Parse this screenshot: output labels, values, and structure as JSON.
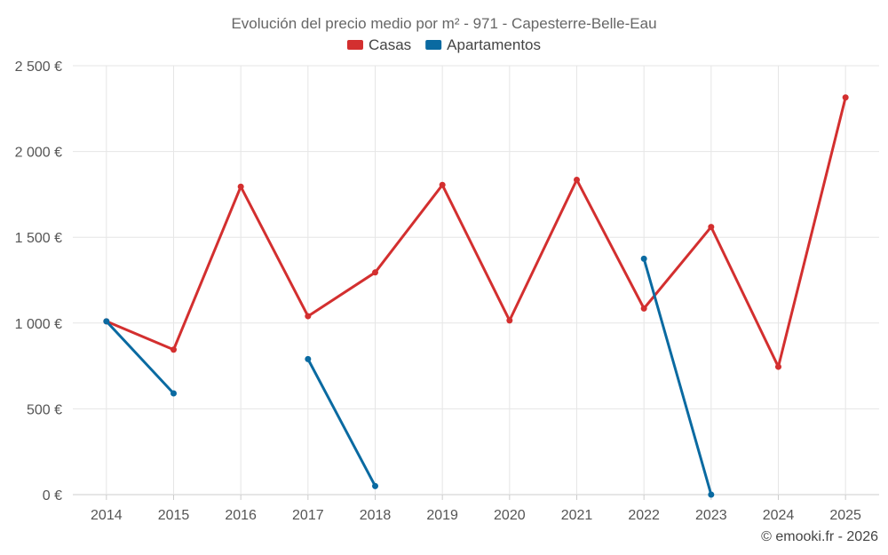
{
  "chart_data": {
    "type": "line",
    "title": "Evolución del precio medio por m² - 971 - Capesterre-Belle-Eau",
    "xlabel": "",
    "ylabel": "",
    "categories": [
      "2014",
      "2015",
      "2016",
      "2017",
      "2018",
      "2019",
      "2020",
      "2021",
      "2022",
      "2023",
      "2024",
      "2025"
    ],
    "ylim": [
      0,
      2500
    ],
    "yticks": [
      0,
      500,
      1000,
      1500,
      2000,
      2500
    ],
    "ytick_labels": [
      "0 €",
      "500 €",
      "1 000 €",
      "1 500 €",
      "2 000 €",
      "2 500 €"
    ],
    "grid": true,
    "legend_position": "top-center",
    "series": [
      {
        "name": "Casas",
        "color": "#d32f2f",
        "values": [
          1010,
          845,
          1795,
          1040,
          1295,
          1805,
          1015,
          1835,
          1085,
          1560,
          745,
          2315
        ]
      },
      {
        "name": "Apartamentos",
        "color": "#0a6aa1",
        "values": [
          1010,
          590,
          null,
          790,
          50,
          null,
          null,
          null,
          1375,
          0,
          null,
          null
        ]
      }
    ],
    "credit": "© emooki.fr - 2026"
  }
}
